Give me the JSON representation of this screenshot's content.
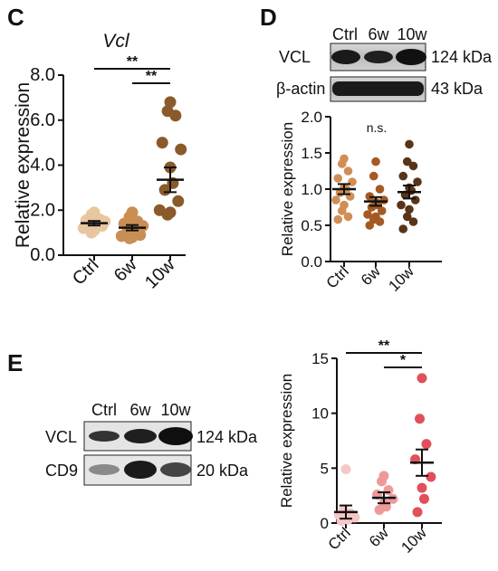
{
  "panels": {
    "C": {
      "label": "C",
      "gene_title": "Vcl"
    },
    "D": {
      "label": "D",
      "blot_lanes": [
        "Ctrl",
        "6w",
        "10w"
      ],
      "blot_rows": [
        {
          "name": "VCL",
          "size": "124 kDa"
        },
        {
          "name": "β-actin",
          "size": "43 kDa"
        }
      ],
      "sig_label": "n.s."
    },
    "E": {
      "label": "E",
      "blot_lanes": [
        "Ctrl",
        "6w",
        "10w"
      ],
      "blot_rows": [
        {
          "name": "VCL",
          "size": "124 kDa"
        },
        {
          "name": "CD9",
          "size": "20 kDa"
        }
      ]
    }
  },
  "chart_data": [
    {
      "panel": "C",
      "type": "scatter",
      "title": "Vcl",
      "xlabel": "",
      "ylabel": "Relative expression",
      "categories": [
        "Ctrl",
        "6w",
        "10w"
      ],
      "ylim": [
        0,
        8
      ],
      "yticks": [
        "0.0",
        "2.0",
        "4.0",
        "6.0",
        "8.0"
      ],
      "colors": [
        "#E8C7A0",
        "#C98E54",
        "#8B5A2B"
      ],
      "series": [
        {
          "values": [
            1.9,
            1.8,
            1.6,
            1.55,
            1.5,
            1.45,
            1.4,
            1.35,
            1.3,
            1.2,
            1.1,
            1.0
          ]
        },
        {
          "values": [
            1.9,
            1.7,
            1.5,
            1.4,
            1.3,
            1.2,
            1.15,
            1.0,
            0.9,
            0.85,
            0.8,
            0.75
          ]
        },
        {
          "values": [
            6.8,
            6.4,
            6.2,
            5.0,
            4.7,
            3.9,
            3.2,
            2.9,
            2.4,
            2.0,
            1.9,
            1.8
          ]
        }
      ],
      "means": [
        1.42,
        1.22,
        3.35
      ],
      "sems": [
        0.1,
        0.12,
        0.55
      ],
      "significance": [
        {
          "from": "Ctrl",
          "to": "10w",
          "label": "**"
        },
        {
          "from": "6w",
          "to": "10w",
          "label": "**"
        }
      ]
    },
    {
      "panel": "D",
      "type": "scatter",
      "title": "",
      "xlabel": "",
      "ylabel": "Relative expression",
      "categories": [
        "Ctrl",
        "6w",
        "10w"
      ],
      "ylim": [
        0,
        2.0
      ],
      "yticks": [
        "0.0",
        "0.5",
        "1.0",
        "1.5",
        "2.0"
      ],
      "colors": [
        "#D08E55",
        "#A45A22",
        "#5A3418"
      ],
      "series": [
        {
          "values": [
            1.42,
            1.35,
            1.25,
            1.15,
            1.1,
            1.02,
            1.0,
            0.95,
            0.9,
            0.85,
            0.78,
            0.7,
            0.62,
            0.58
          ]
        },
        {
          "values": [
            1.38,
            1.18,
            1.0,
            0.9,
            0.85,
            0.82,
            0.78,
            0.75,
            0.7,
            0.65,
            0.62,
            0.58,
            0.55,
            0.5
          ]
        },
        {
          "values": [
            1.62,
            1.38,
            1.32,
            1.18,
            1.1,
            1.02,
            0.98,
            0.92,
            0.85,
            0.78,
            0.72,
            0.62,
            0.55,
            0.45
          ]
        }
      ],
      "means": [
        1.0,
        0.83,
        0.96
      ],
      "sems": [
        0.07,
        0.06,
        0.09
      ],
      "significance": [
        {
          "from": "Ctrl",
          "to": "10w",
          "label": "n.s.",
          "line": false
        }
      ]
    },
    {
      "panel": "E",
      "type": "scatter",
      "title": "",
      "xlabel": "",
      "ylabel": "Relative expression",
      "categories": [
        "Ctrl",
        "6w",
        "10w"
      ],
      "ylim": [
        0,
        15
      ],
      "yticks": [
        "0",
        "5",
        "10",
        "15"
      ],
      "colors": [
        "#F7C7C7",
        "#EE9A9A",
        "#E0505A"
      ],
      "series": [
        {
          "values": [
            4.9,
            1.2,
            0.9,
            0.7,
            0.5,
            0.4,
            0.3,
            0.2
          ]
        },
        {
          "values": [
            4.3,
            3.8,
            3.0,
            2.6,
            2.2,
            1.8,
            1.5,
            1.2
          ]
        },
        {
          "values": [
            13.2,
            9.5,
            7.2,
            5.8,
            4.2,
            3.2,
            2.2,
            1.0
          ]
        }
      ],
      "means": [
        1.0,
        2.3,
        5.5
      ],
      "sems": [
        0.6,
        0.5,
        1.2
      ],
      "significance": [
        {
          "from": "Ctrl",
          "to": "10w",
          "label": "**"
        },
        {
          "from": "6w",
          "to": "10w",
          "label": "*"
        }
      ]
    }
  ]
}
